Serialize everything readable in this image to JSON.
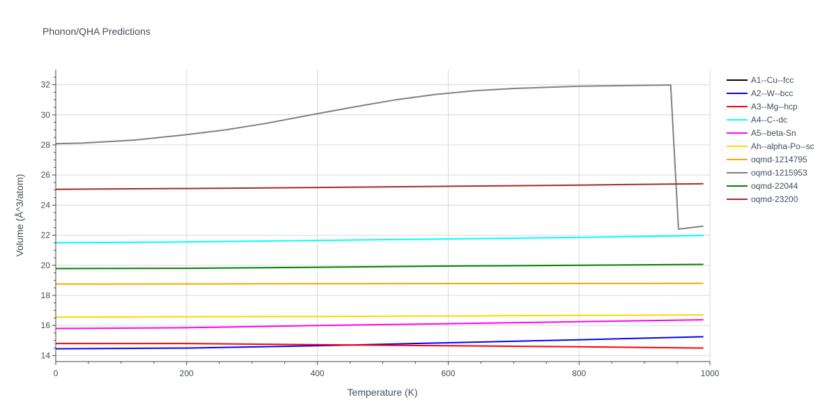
{
  "chart_data": {
    "type": "line",
    "title": "Phonon/QHA Predictions",
    "xlabel": "Temperature (K)",
    "ylabel": "Volume (Å^3/atom)",
    "xlim": [
      0,
      1000
    ],
    "ylim": [
      13.6,
      33.0
    ],
    "xticks": [
      0,
      200,
      400,
      600,
      800,
      1000
    ],
    "yticks": [
      14,
      16,
      18,
      20,
      22,
      24,
      26,
      28,
      30,
      32
    ],
    "grid": true,
    "legend_position": "top-right",
    "series": [
      {
        "name": "A1--Cu--fcc",
        "color": "#000000",
        "x": [],
        "y": []
      },
      {
        "name": "A2--W--bcc",
        "color": "#0000ff",
        "x": [
          0,
          200,
          400,
          600,
          800,
          990
        ],
        "y": [
          14.45,
          14.5,
          14.65,
          14.85,
          15.05,
          15.25
        ]
      },
      {
        "name": "A3--Mg--hcp",
        "color": "#ff0000",
        "x": [
          0,
          200,
          400,
          600,
          800,
          990
        ],
        "y": [
          14.8,
          14.8,
          14.72,
          14.65,
          14.58,
          14.5
        ]
      },
      {
        "name": "A4--C--dc",
        "color": "#00ffff",
        "x": [
          0,
          200,
          400,
          600,
          800,
          990
        ],
        "y": [
          21.5,
          21.55,
          21.65,
          21.75,
          21.85,
          21.98
        ]
      },
      {
        "name": "A5--beta-Sn",
        "color": "#ff00ff",
        "x": [
          0,
          200,
          400,
          600,
          800,
          990
        ],
        "y": [
          15.8,
          15.85,
          16.0,
          16.12,
          16.25,
          16.38
        ]
      },
      {
        "name": "Ah--alpha-Po--sc",
        "color": "#ffd700",
        "x": [
          0,
          200,
          400,
          600,
          800,
          990
        ],
        "y": [
          16.55,
          16.58,
          16.6,
          16.63,
          16.67,
          16.7
        ]
      },
      {
        "name": "oqmd-1214795",
        "color": "#ffa500",
        "x": [
          0,
          200,
          400,
          600,
          800,
          990
        ],
        "y": [
          18.75,
          18.76,
          18.77,
          18.78,
          18.79,
          18.8
        ]
      },
      {
        "name": "oqmd-1215953",
        "color": "#808080",
        "x": [
          0,
          40,
          120,
          200,
          260,
          320,
          400,
          460,
          520,
          580,
          640,
          700,
          800,
          940,
          952,
          990
        ],
        "y": [
          28.08,
          28.12,
          28.32,
          28.68,
          29.0,
          29.42,
          30.08,
          30.55,
          31.0,
          31.35,
          31.6,
          31.75,
          31.9,
          31.98,
          22.4,
          22.6
        ]
      },
      {
        "name": "oqmd-22044",
        "color": "#008000",
        "x": [
          0,
          200,
          400,
          600,
          800,
          990
        ],
        "y": [
          19.78,
          19.8,
          19.87,
          19.95,
          20.0,
          20.06
        ]
      },
      {
        "name": "oqmd-23200",
        "color": "#a52a2a",
        "x": [
          0,
          200,
          400,
          600,
          800,
          990
        ],
        "y": [
          25.05,
          25.1,
          25.17,
          25.25,
          25.33,
          25.42
        ]
      }
    ]
  }
}
